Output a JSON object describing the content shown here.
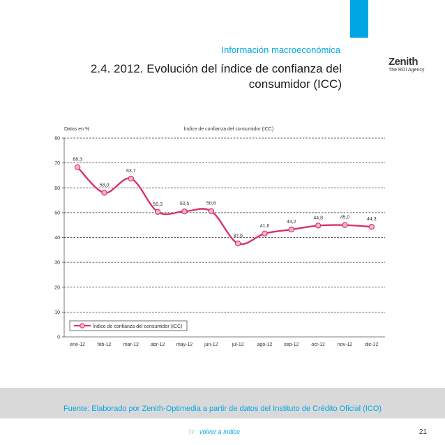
{
  "header": {
    "section": "Información macroeconómica",
    "title_line1": "2.4.  2012. Evolución del índice de confianza del",
    "title_line2": "consumidor (ICC)",
    "logo_name": "Zenith",
    "logo_sub": "The ROI Agency",
    "accent_color": "#00a6e4"
  },
  "chart_data": {
    "type": "line",
    "title": "Índice de confianza del consumidor (ICC)",
    "ylabel": "Datos en %",
    "ylim": [
      0,
      80
    ],
    "yticks": [
      0,
      10,
      20,
      30,
      40,
      50,
      60,
      70,
      80
    ],
    "grid": true,
    "legend_position": "bottom-left",
    "categories": [
      "ene-12",
      "feb-12",
      "mar-12",
      "abr-12",
      "may-12",
      "jun-12",
      "jul-12",
      "ago-12",
      "sep-12",
      "oct-12",
      "nov-12",
      "dic-12"
    ],
    "series": [
      {
        "name": "Índice de confianza del consumidor (ICC)",
        "color": "#d8336b",
        "values": [
          68.3,
          58.0,
          63.7,
          50.3,
          50.5,
          50.6,
          37.6,
          41.6,
          43.2,
          44.8,
          45.0,
          44.3
        ],
        "labels": [
          "68,3",
          "58,0",
          "63,7",
          "50,3",
          "50,5",
          "50,6",
          "37,6",
          "41,6",
          "43,2",
          "44,8",
          "45,0",
          "44,3"
        ]
      }
    ]
  },
  "footer": {
    "source": "Fuente: Elaborado por Zenith-Optimedia a partir de datos del Instituto de Crédito Oficial (ICO)",
    "back_link": "volver a índice",
    "page_number": "21"
  }
}
